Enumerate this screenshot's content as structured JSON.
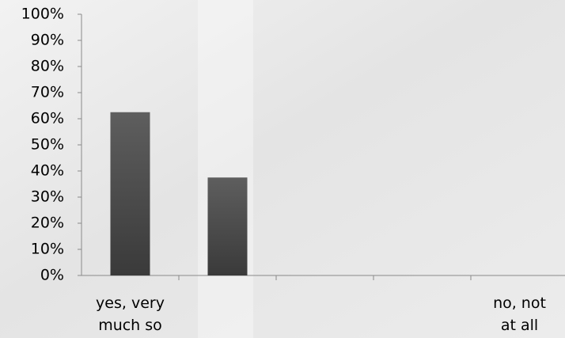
{
  "chart_data": {
    "type": "bar",
    "categories": [
      "yes, very much so",
      null,
      null,
      null,
      "no, not at all"
    ],
    "values": [
      62.5,
      37.5,
      0,
      0,
      0
    ],
    "color": "#4a4a4a",
    "ylim": [
      0,
      100
    ],
    "yticks": [
      {
        "value": 0,
        "label": "0%"
      },
      {
        "value": 10,
        "label": "10%"
      },
      {
        "value": 20,
        "label": "20%"
      },
      {
        "value": 30,
        "label": "30%"
      },
      {
        "value": 40,
        "label": "40%"
      },
      {
        "value": 50,
        "label": "50%"
      },
      {
        "value": 60,
        "label": "60%"
      },
      {
        "value": 70,
        "label": "70%"
      },
      {
        "value": 80,
        "label": "80%"
      },
      {
        "value": 90,
        "label": "90%"
      },
      {
        "value": 100,
        "label": "100%"
      }
    ],
    "grid": false
  }
}
